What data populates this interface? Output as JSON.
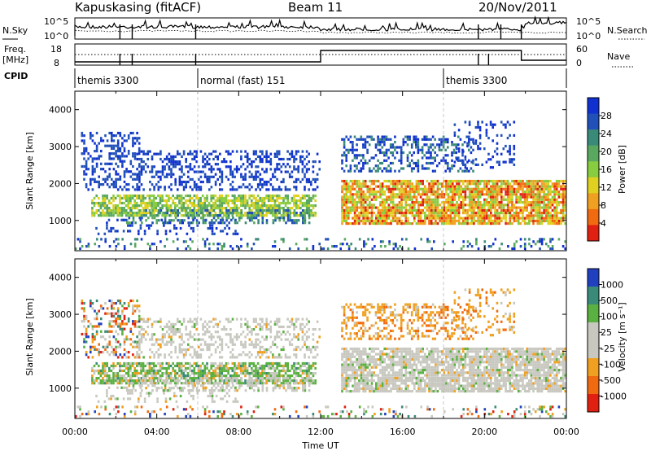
{
  "header": {
    "station": "Kapuskasing (fitACF)",
    "beam": "Beam 11",
    "date": "20/Nov/2011"
  },
  "panels": {
    "nsky_label": "N.Sky",
    "nsky_ticks": [
      "10^5",
      "10^0"
    ],
    "nsearch_label": "N.Search",
    "nsearch_ticks": [
      "10^5",
      "10^0"
    ],
    "freq_label": "Freq.",
    "freq_unit": "[MHz]",
    "freq_ticks": [
      "18",
      "8"
    ],
    "nave_label": "Nave",
    "nave_ticks": [
      "60",
      "0"
    ],
    "cpid_label": "CPID",
    "cpid_segments": [
      {
        "label": "themis 3300",
        "start": 0.0
      },
      {
        "label": "normal (fast) 151",
        "start": 6.0
      },
      {
        "label": "themis 3300",
        "start": 18.0
      }
    ]
  },
  "chart_data": [
    {
      "type": "heatmap",
      "name": "power",
      "ylabel": "Slant Range [km]",
      "yticks": [
        1000,
        2000,
        3000,
        4000
      ],
      "ylim": [
        180,
        4500
      ],
      "xlim_hours": [
        0,
        24
      ],
      "colorbar_label": "Power [dB]",
      "colorbar_ticks": [
        "28",
        "24",
        "20",
        "16",
        "12",
        "8",
        "4"
      ],
      "colors": [
        "#1030d0",
        "#2050b8",
        "#3a8a78",
        "#5aa860",
        "#88cc40",
        "#e0d020",
        "#f0a020",
        "#f06a10",
        "#e02010"
      ]
    },
    {
      "type": "heatmap",
      "name": "velocity",
      "ylabel": "Slant Range [km]",
      "xlabel": "Time UT",
      "yticks": [
        1000,
        2000,
        3000,
        4000
      ],
      "ylim": [
        180,
        4500
      ],
      "xlim_hours": [
        0,
        24
      ],
      "xticks": [
        "00:00",
        "04:00",
        "08:00",
        "12:00",
        "16:00",
        "20:00",
        "00:00"
      ],
      "colorbar_label": "Velocity [m s⁻¹]",
      "colorbar_ticks": [
        "1000",
        "500",
        "100",
        "25",
        "-25",
        "-100",
        "-500",
        "-1000"
      ],
      "colors": [
        "#2040c0",
        "#3a8a78",
        "#5ab040",
        "#c8c8c0",
        "#c8c8c0",
        "#f0a020",
        "#f06a10",
        "#e02010"
      ]
    }
  ]
}
